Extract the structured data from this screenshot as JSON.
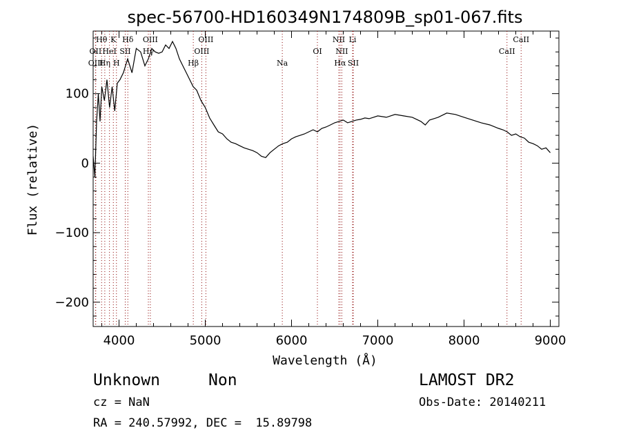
{
  "chart_data": {
    "type": "line",
    "title": "spec-56700-HD160349N174809B_sp01-067.fits",
    "xlabel": "Wavelength (Å)",
    "ylabel": "Flux (relative)",
    "xlim": [
      3700,
      9100
    ],
    "ylim": [
      -235,
      190
    ],
    "xticks": [
      4000,
      5000,
      6000,
      7000,
      8000,
      9000
    ],
    "yticks": [
      -200,
      -100,
      0,
      100
    ],
    "line_color": "#000000",
    "marker_color": "#8b0000",
    "series": [
      {
        "x": [
          3700,
          3720,
          3740,
          3760,
          3780,
          3800,
          3830,
          3860,
          3890,
          3920,
          3950,
          3980,
          4010,
          4050,
          4100,
          4150,
          4200,
          4250,
          4300,
          4340,
          4380,
          4420,
          4460,
          4500,
          4540,
          4580,
          4620,
          4660,
          4700,
          4740,
          4780,
          4820,
          4860,
          4900,
          4950,
          5000,
          5050,
          5100,
          5150,
          5200,
          5250,
          5300,
          5350,
          5400,
          5450,
          5500,
          5550,
          5600,
          5650,
          5700,
          5750,
          5800,
          5850,
          5900,
          5950,
          6000,
          6050,
          6100,
          6150,
          6200,
          6250,
          6300,
          6350,
          6400,
          6450,
          6500,
          6550,
          6600,
          6650,
          6700,
          6750,
          6800,
          6850,
          6900,
          6950,
          7000,
          7100,
          7200,
          7300,
          7400,
          7500,
          7550,
          7600,
          7650,
          7700,
          7800,
          7900,
          8000,
          8100,
          8200,
          8300,
          8400,
          8450,
          8500,
          8550,
          8600,
          8650,
          8700,
          8750,
          8800,
          8850,
          8900,
          8950,
          9000
        ],
        "y": [
          10,
          -20,
          60,
          100,
          60,
          110,
          90,
          120,
          80,
          110,
          75,
          115,
          120,
          130,
          150,
          130,
          165,
          160,
          140,
          150,
          165,
          160,
          158,
          160,
          170,
          165,
          175,
          165,
          150,
          140,
          130,
          120,
          110,
          105,
          90,
          80,
          65,
          55,
          45,
          42,
          35,
          30,
          28,
          25,
          22,
          20,
          18,
          15,
          10,
          8,
          15,
          20,
          25,
          28,
          30,
          35,
          38,
          40,
          42,
          45,
          48,
          45,
          50,
          52,
          55,
          58,
          60,
          62,
          58,
          60,
          62,
          63,
          65,
          64,
          66,
          68,
          66,
          70,
          68,
          66,
          60,
          55,
          62,
          64,
          66,
          72,
          70,
          66,
          62,
          58,
          55,
          50,
          48,
          45,
          40,
          42,
          38,
          36,
          30,
          28,
          25,
          20,
          22,
          15
        ]
      }
    ],
    "lines": [
      {
        "label": "Hθ",
        "x": 3798,
        "row": 1
      },
      {
        "label": "OII",
        "x": 3727,
        "row": 2
      },
      {
        "label": "OIII",
        "x": 3730,
        "row": 3
      },
      {
        "label": "Hη",
        "x": 3835,
        "row": 3
      },
      {
        "label": "HeI",
        "x": 3889,
        "row": 2
      },
      {
        "label": "K",
        "x": 3934,
        "row": 1
      },
      {
        "label": "H",
        "x": 3970,
        "row": 3
      },
      {
        "label": "SII",
        "x": 4072,
        "row": 2
      },
      {
        "label": "Hδ",
        "x": 4102,
        "row": 1
      },
      {
        "label": "Hγ",
        "x": 4340,
        "row": 2
      },
      {
        "label": "OIII",
        "x": 4363,
        "row": 1
      },
      {
        "label": "Hβ",
        "x": 4861,
        "row": 3
      },
      {
        "label": "OIII",
        "x": 4959,
        "row": 2
      },
      {
        "label": "OIII",
        "x": 5007,
        "row": 1
      },
      {
        "label": "Na",
        "x": 5893,
        "row": 3
      },
      {
        "label": "OI",
        "x": 6300,
        "row": 2
      },
      {
        "label": "NII",
        "x": 6548,
        "row": 1
      },
      {
        "label": "NII",
        "x": 6583,
        "row": 2
      },
      {
        "label": "Hα",
        "x": 6563,
        "row": 3
      },
      {
        "label": "Li",
        "x": 6708,
        "row": 1
      },
      {
        "label": "SII",
        "x": 6716,
        "row": 3
      },
      {
        "label": "CaII",
        "x": 8498,
        "row": 2
      },
      {
        "label": "CaII",
        "x": 8662,
        "row": 1
      }
    ]
  },
  "info": {
    "class": "Unknown",
    "subclass": "Non",
    "cz": "cz = NaN",
    "radec": "RA = 240.57992, DEC =  15.89798",
    "survey": "LAMOST DR2",
    "obs_date": "Obs-Date: 20140211"
  }
}
